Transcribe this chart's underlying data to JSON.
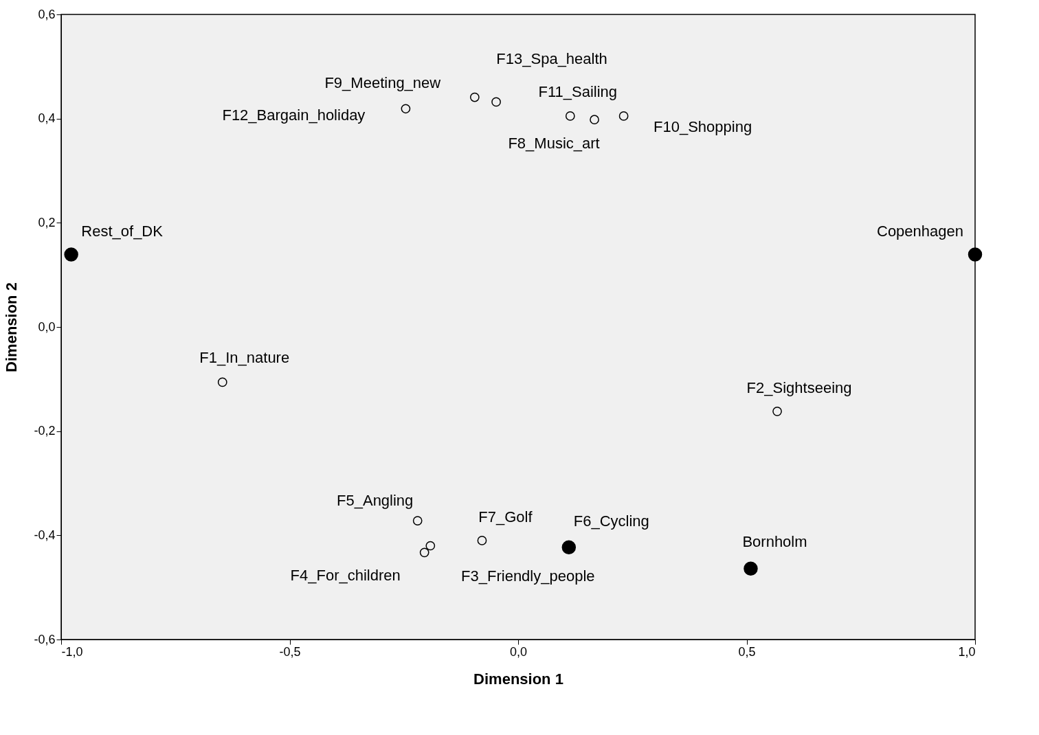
{
  "chart_data": {
    "type": "scatter",
    "xlabel": "Dimension 1",
    "ylabel": "Dimension 2",
    "xlim": [
      -1.0,
      1.0
    ],
    "ylim": [
      -0.6,
      0.6
    ],
    "xticks": [
      {
        "value": -1.0,
        "label": "-1,0"
      },
      {
        "value": -0.5,
        "label": "-0,5"
      },
      {
        "value": 0.0,
        "label": "0,0"
      },
      {
        "value": 0.5,
        "label": "0,5"
      },
      {
        "value": 1.0,
        "label": "1,0"
      }
    ],
    "yticks": [
      {
        "value": -0.6,
        "label": "-0,6"
      },
      {
        "value": -0.4,
        "label": "-0,4"
      },
      {
        "value": -0.2,
        "label": "-0,2"
      },
      {
        "value": 0.0,
        "label": "0,0"
      },
      {
        "value": 0.2,
        "label": "0,2"
      },
      {
        "value": 0.4,
        "label": "0,4"
      },
      {
        "value": 0.6,
        "label": "0,6"
      }
    ],
    "grid": false,
    "marker": "circle",
    "series": [
      {
        "color": "#000000",
        "x": [
          -0.978,
          1.0,
          0.509,
          0.111
        ],
        "values": [
          0.139,
          0.139,
          -0.464,
          -0.423
        ]
      },
      {
        "color": "#000000",
        "x": [
          -0.647,
          0.567,
          -0.192,
          -0.205,
          -0.22,
          -0.079,
          0.167,
          -0.095,
          0.231,
          0.114,
          -0.246,
          -0.048
        ],
        "values": [
          -0.106,
          -0.162,
          -0.42,
          -0.433,
          -0.372,
          -0.41,
          0.398,
          0.441,
          0.405,
          0.405,
          0.419,
          0.432
        ]
      }
    ],
    "annotations": [
      {
        "text": "Rest_of_DK",
        "x": -0.978,
        "y": 0.139
      },
      {
        "text": "Copenhagen",
        "x": 1.0,
        "y": 0.139
      },
      {
        "text": "Bornholm",
        "x": 0.509,
        "y": -0.464
      },
      {
        "text": "F6_Cycling",
        "x": 0.111,
        "y": -0.423
      },
      {
        "text": "F1_In_nature",
        "x": -0.647,
        "y": -0.106
      },
      {
        "text": "F2_Sightseeing",
        "x": 0.567,
        "y": -0.162
      },
      {
        "text": "F3_Friendly_people",
        "x": -0.192,
        "y": -0.42
      },
      {
        "text": "F4_For_children",
        "x": -0.205,
        "y": -0.433
      },
      {
        "text": "F5_Angling",
        "x": -0.22,
        "y": -0.372
      },
      {
        "text": "F7_Golf",
        "x": -0.079,
        "y": -0.41
      },
      {
        "text": "F8_Music_art",
        "x": 0.167,
        "y": 0.398
      },
      {
        "text": "F9_Meeting_new",
        "x": -0.095,
        "y": 0.441
      },
      {
        "text": "F10_Shopping",
        "x": 0.231,
        "y": 0.405
      },
      {
        "text": "F11_Sailing",
        "x": 0.114,
        "y": 0.405
      },
      {
        "text": "F12_Bargain_holiday",
        "x": -0.246,
        "y": 0.419
      },
      {
        "text": "F13_Spa_health",
        "x": -0.048,
        "y": 0.432
      }
    ]
  }
}
